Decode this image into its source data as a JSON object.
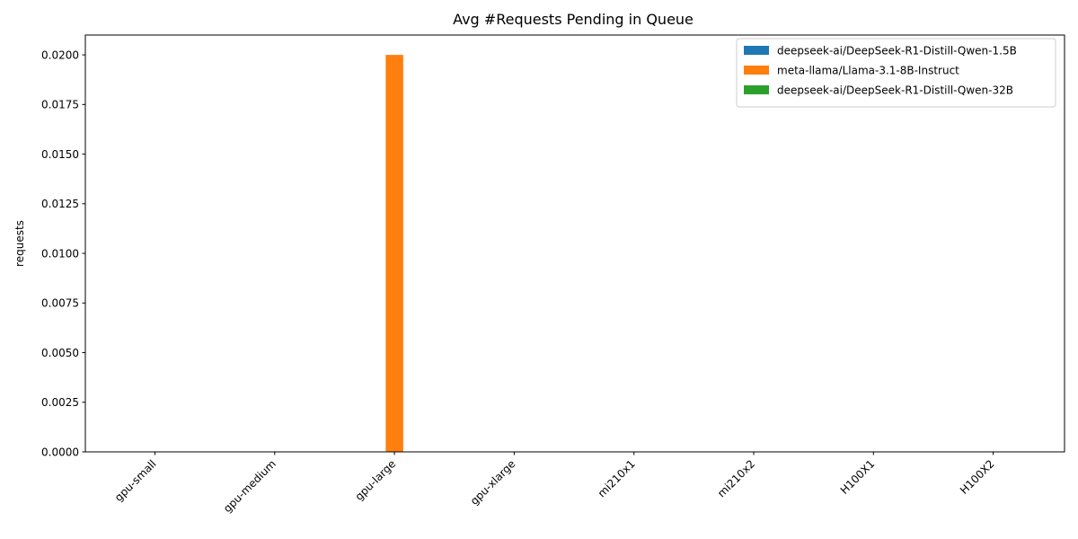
{
  "chart_data": {
    "type": "bar",
    "title": "Avg #Requests Pending in Queue",
    "xlabel": "",
    "ylabel": "requests",
    "categories": [
      "gpu-small",
      "gpu-medium",
      "gpu-large",
      "gpu-xlarge",
      "mi210x1",
      "mi210x2",
      "H100X1",
      "H100X2"
    ],
    "series": [
      {
        "name": "deepseek-ai/DeepSeek-R1-Distill-Qwen-1.5B",
        "color": "#1f77b4",
        "values": [
          0,
          0,
          0,
          0,
          0,
          0,
          0,
          0
        ]
      },
      {
        "name": "meta-llama/Llama-3.1-8B-Instruct",
        "color": "#ff7f0e",
        "values": [
          0,
          0,
          0.02,
          0,
          0,
          0,
          0,
          0
        ]
      },
      {
        "name": "deepseek-ai/DeepSeek-R1-Distill-Qwen-32B",
        "color": "#2ca02c",
        "values": [
          0,
          0,
          0,
          0,
          0,
          0,
          0,
          0
        ]
      }
    ],
    "ylim": [
      0,
      0.021
    ],
    "yticks": [
      0.0,
      0.0025,
      0.005,
      0.0075,
      0.01,
      0.0125,
      0.015,
      0.0175,
      0.02
    ],
    "ytick_labels": [
      "0.0000",
      "0.0025",
      "0.0050",
      "0.0075",
      "0.0100",
      "0.0125",
      "0.0150",
      "0.0175",
      "0.0200"
    ],
    "grid": false,
    "legend_position": "top-right"
  }
}
